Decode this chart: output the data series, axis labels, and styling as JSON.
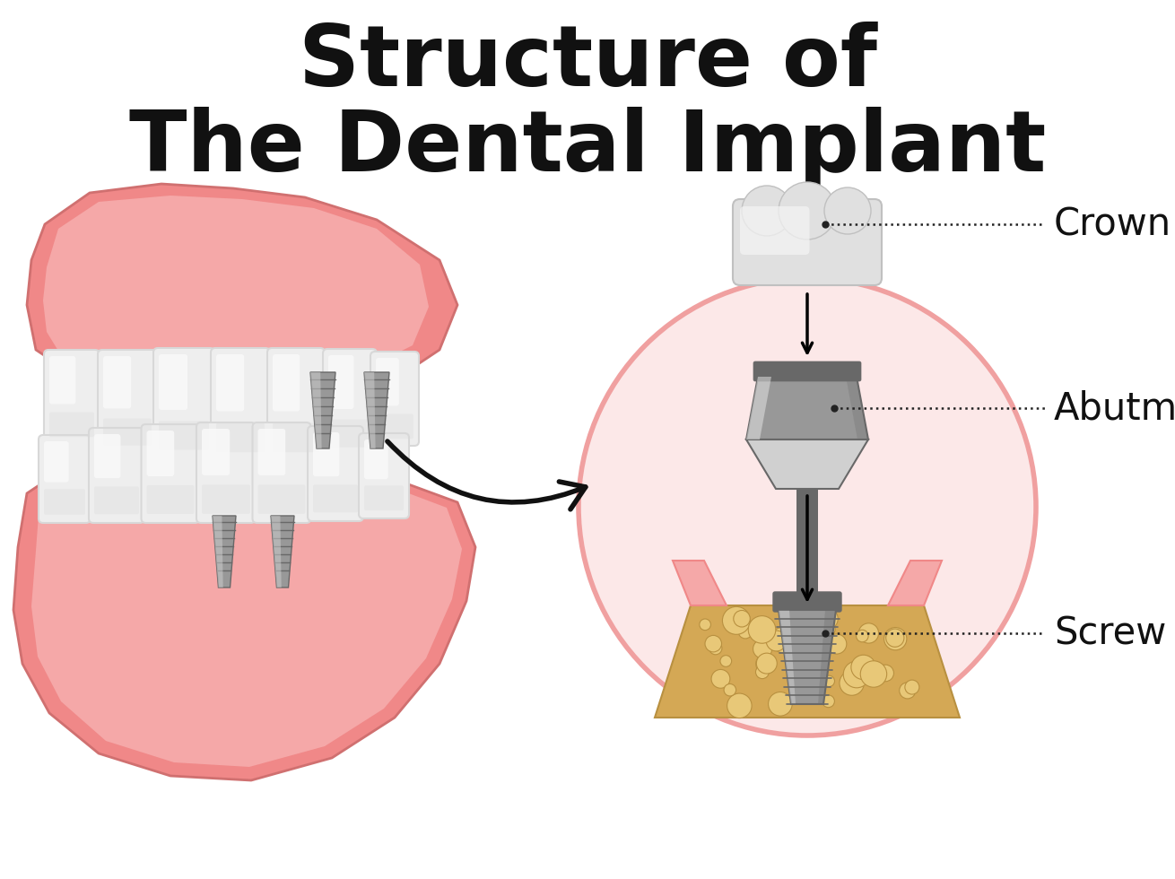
{
  "title_line1": "Structure of",
  "title_line2": "The Dental Implant",
  "title_fontsize": 68,
  "title_color": "#111111",
  "bg_color": "#ffffff",
  "label_crown": "Crown",
  "label_abutment": "Abutment",
  "label_screw": "Screw",
  "label_fontsize": 30,
  "gum_color": "#f08888",
  "gum_mid": "#f5a8a8",
  "gum_light": "#fac8c8",
  "bone_color": "#d4a855",
  "bone_light": "#e8c878",
  "bone_dark": "#b89040",
  "metal_dark": "#686868",
  "metal_mid": "#989898",
  "metal_light": "#d0d0d0",
  "metal_vlight": "#e8e8e8",
  "crown_base": "#e0e0e0",
  "crown_light": "#f5f5f5",
  "circle_fill": "#fce8e8",
  "circle_edge": "#f0a0a0",
  "dot_color": "#222222",
  "arrow_color": "#111111",
  "tooth_base": "#eeeeee",
  "tooth_light": "#fafafa",
  "tooth_shadow": "#d8d8d8"
}
